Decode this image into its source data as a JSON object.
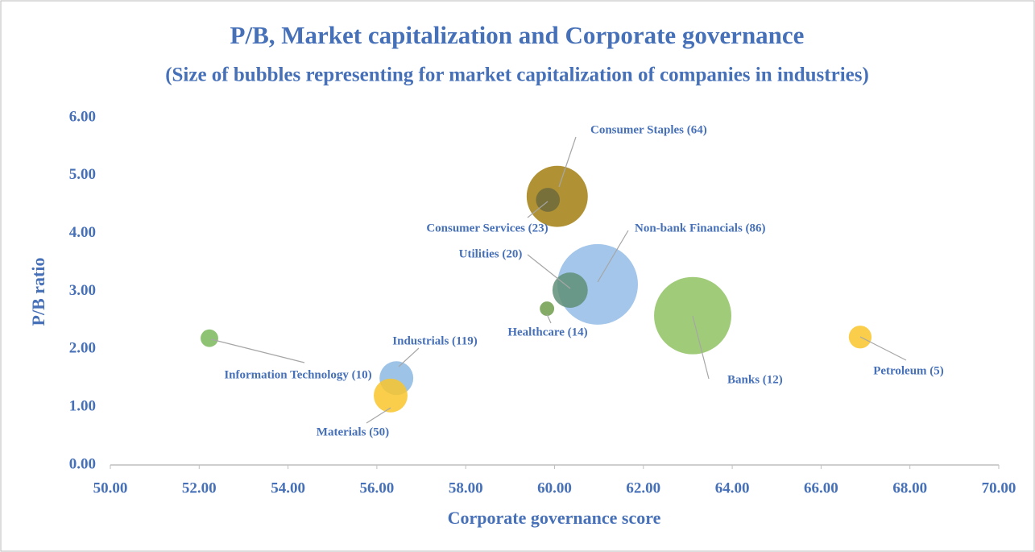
{
  "chart_data": {
    "type": "bubble",
    "title": "P/B, Market capitalization and Corporate governance",
    "subtitle": "(Size of bubbles representing for market capitalization of companies in industries)",
    "x_label": "Corporate governance score",
    "y_label": "P/B ratio",
    "xlim": [
      50,
      70
    ],
    "xticks": [
      {
        "value": 50,
        "label": "50.00"
      },
      {
        "value": 52,
        "label": "52.00"
      },
      {
        "value": 54,
        "label": "54.00"
      },
      {
        "value": 56,
        "label": "56.00"
      },
      {
        "value": 58,
        "label": "58.00"
      },
      {
        "value": 60,
        "label": "60.00"
      },
      {
        "value": 62,
        "label": "62.00"
      },
      {
        "value": 64,
        "label": "64.00"
      },
      {
        "value": 66,
        "label": "66.00"
      },
      {
        "value": 68,
        "label": "68.00"
      },
      {
        "value": 70,
        "label": "70.00"
      }
    ],
    "ylim": [
      0,
      6
    ],
    "yticks": [
      {
        "value": 0,
        "label": "0.00"
      },
      {
        "value": 1,
        "label": "1.00"
      },
      {
        "value": 2,
        "label": "2.00"
      },
      {
        "value": 3,
        "label": "3.00"
      },
      {
        "value": 4,
        "label": "4.00"
      },
      {
        "value": 5,
        "label": "5.00"
      },
      {
        "value": 6,
        "label": "6.00"
      }
    ],
    "points": [
      {
        "label": "Consumer Staples (64)",
        "x": 60.06,
        "y": 4.64,
        "size": 144,
        "color": "#a27f12"
      },
      {
        "label": "Consumer Services (23)",
        "x": 59.85,
        "y": 4.58,
        "size": 22,
        "color": "#6f6a3c"
      },
      {
        "label": "Non-bank Financials (86)",
        "x": 60.97,
        "y": 3.12,
        "size": 250,
        "color": "#93bce6"
      },
      {
        "label": "Utilities (20)",
        "x": 60.35,
        "y": 3.02,
        "size": 48,
        "color": "#5f8f78"
      },
      {
        "label": "Healthcare (14)",
        "x": 59.83,
        "y": 2.7,
        "size": 8,
        "color": "#6f9e4c"
      },
      {
        "label": "Banks (12)",
        "x": 63.11,
        "y": 2.58,
        "size": 230,
        "color": "#8fc262"
      },
      {
        "label": "Petroleum (5)",
        "x": 66.88,
        "y": 2.21,
        "size": 20,
        "color": "#f9c62c"
      },
      {
        "label": "Information Technology (10)",
        "x": 52.23,
        "y": 2.19,
        "size": 12,
        "color": "#7bb85c"
      },
      {
        "label": "Industrials (119)",
        "x": 56.44,
        "y": 1.5,
        "size": 44,
        "color": "#8cb9e2"
      },
      {
        "label": "Materials (50)",
        "x": 56.31,
        "y": 1.2,
        "size": 44,
        "color": "#f9c62c"
      }
    ]
  }
}
